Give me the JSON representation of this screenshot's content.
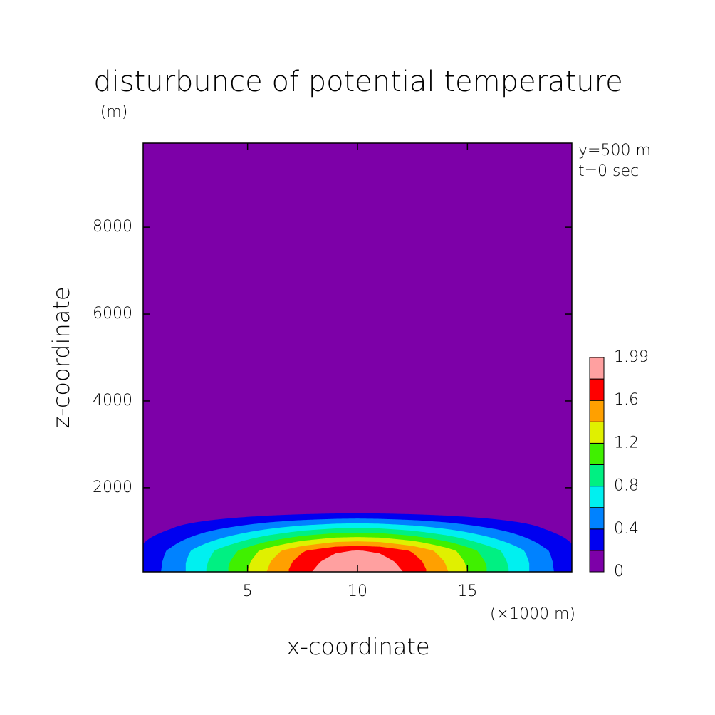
{
  "chart_data": {
    "type": "contour",
    "title": "disturbunce of potential temperature",
    "y_unit": "(m)",
    "x_unit": "(×1000 m)",
    "x_label": "x-coordinate",
    "y_label": "z-coordinate",
    "annotations": [
      "y=500 m",
      "t=0 sec"
    ],
    "x": [
      0.25,
      1.5,
      3,
      4.5,
      6,
      7.5,
      9,
      10,
      11,
      12.5,
      14,
      15.5,
      17,
      18.5,
      19.75
    ],
    "y": [
      62.5,
      300,
      550,
      750,
      950,
      1150,
      1350,
      1550,
      9937.5
    ],
    "z": [
      [
        0.27,
        0.47,
        0.78,
        1.09,
        1.43,
        1.74,
        1.95,
        1.99,
        1.95,
        1.74,
        1.43,
        1.09,
        0.78,
        0.47,
        0.27
      ],
      [
        0.26,
        0.46,
        0.76,
        1.06,
        1.39,
        1.69,
        1.89,
        1.93,
        1.89,
        1.69,
        1.39,
        1.06,
        0.76,
        0.46,
        0.26
      ],
      [
        0.25,
        0.43,
        0.71,
        0.99,
        1.3,
        1.58,
        1.77,
        1.81,
        1.77,
        1.58,
        1.3,
        0.99,
        0.71,
        0.43,
        0.25
      ],
      [
        0.19,
        0.34,
        0.56,
        0.78,
        1.03,
        1.25,
        1.4,
        1.43,
        1.4,
        1.25,
        1.03,
        0.78,
        0.56,
        0.34,
        0.19
      ],
      [
        0.14,
        0.24,
        0.41,
        0.57,
        0.74,
        0.9,
        1.01,
        1.03,
        1.01,
        0.9,
        0.74,
        0.57,
        0.41,
        0.24,
        0.14
      ],
      [
        0.09,
        0.16,
        0.26,
        0.36,
        0.47,
        0.57,
        0.64,
        0.66,
        0.64,
        0.57,
        0.47,
        0.36,
        0.26,
        0.16,
        0.09
      ],
      [
        0.04,
        0.07,
        0.11,
        0.16,
        0.21,
        0.25,
        0.28,
        0.29,
        0.28,
        0.25,
        0.21,
        0.16,
        0.11,
        0.07,
        0.04
      ],
      [
        0,
        0,
        0,
        0,
        0,
        0,
        0,
        0,
        0,
        0,
        0,
        0,
        0,
        0,
        0
      ],
      [
        0,
        0,
        0,
        0,
        0,
        0,
        0,
        0,
        0,
        0,
        0,
        0,
        0,
        0,
        0
      ]
    ],
    "levels": [
      0,
      0.2,
      0.4,
      0.6,
      0.8,
      1,
      1.2,
      1.4,
      1.6,
      1.8,
      1.99
    ],
    "level_ticks": [
      0,
      0.4,
      0.8,
      1.2,
      1.6,
      1.99
    ],
    "colors": [
      "#7d00a8",
      "#0000f0",
      "#0082ff",
      "#00f0f0",
      "#00f082",
      "#40f000",
      "#e0f000",
      "#ffa000",
      "#ff0000",
      "#ffa0a0"
    ],
    "xlim": [
      0.25,
      19.75
    ],
    "ylim": [
      62.5,
      9937.5
    ],
    "xticks": [
      5,
      10,
      15
    ],
    "yticks": [
      2000,
      4000,
      6000,
      8000
    ]
  }
}
